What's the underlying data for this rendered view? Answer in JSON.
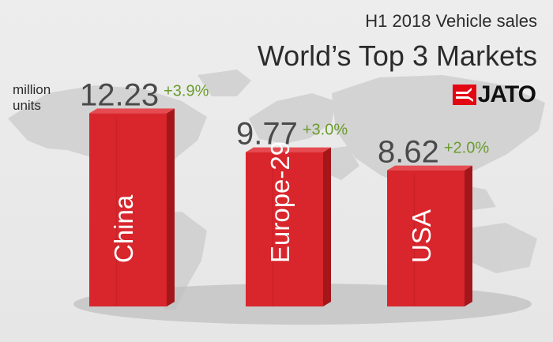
{
  "header": {
    "subtitle": "H1 2018 Vehicle sales",
    "title": "World’s Top 3 Markets",
    "unit_label": "million units",
    "logo_text": "JATO"
  },
  "colors": {
    "bar_front": "#d8262c",
    "bar_side": "#a3171b",
    "bar_top": "#e54b50",
    "value_text": "#4a4a4a",
    "growth_text": "#6a9c2e",
    "category_text": "#ffffff",
    "map": "#cfcfcf",
    "logo_red": "#e30613"
  },
  "chart_data": {
    "type": "bar",
    "categories": [
      "China",
      "Europe-29",
      "USA"
    ],
    "values": [
      12.23,
      9.77,
      8.62
    ],
    "growth_labels": [
      "+3.9%",
      "+3.0%",
      "+2.0%"
    ],
    "value_labels": [
      "12.23",
      "9.77",
      "8.62"
    ],
    "title": "World’s Top 3 Markets",
    "subtitle": "H1 2018 Vehicle sales",
    "ylabel": "million units",
    "ylim": [
      0,
      13
    ],
    "grid": false,
    "legend": "none"
  }
}
